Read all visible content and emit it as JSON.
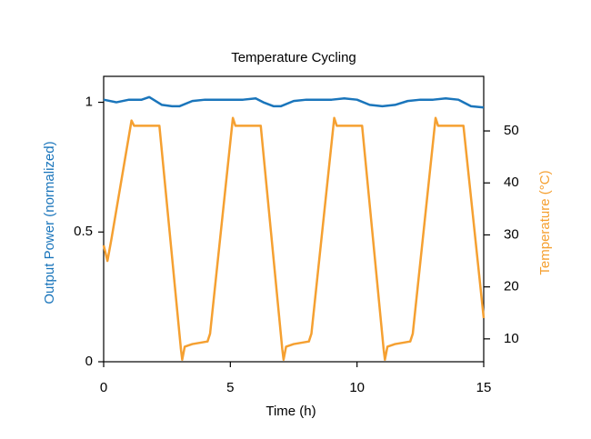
{
  "chart_data": {
    "type": "line",
    "title": "Temperature Cycling",
    "x_label": "Time (h)",
    "y_label": "Output Power (normalized)",
    "y2_label": "Temperature (°C)",
    "xlim": [
      0,
      15
    ],
    "xticks": [
      0,
      5,
      10,
      15
    ],
    "ylim": [
      0,
      1.1
    ],
    "yticks": [
      0,
      0.5,
      1
    ],
    "y2lim": [
      5.6,
      60.5
    ],
    "y2ticks": [
      10,
      20,
      30,
      40,
      50
    ],
    "series": [
      {
        "name": "Output Power",
        "color": "#1a75bb",
        "x": [
          0,
          0.5,
          1,
          1.5,
          1.8,
          2.3,
          2.7,
          3,
          3.5,
          4,
          4.5,
          5,
          5.5,
          6,
          6.3,
          6.7,
          7,
          7.5,
          8,
          8.5,
          9,
          9.5,
          10,
          10.5,
          11,
          11.5,
          12,
          12.5,
          13,
          13.5,
          14,
          14.5,
          15
        ],
        "values": [
          1.01,
          1.0,
          1.01,
          1.01,
          1.02,
          0.99,
          0.985,
          0.985,
          1.005,
          1.01,
          1.01,
          1.01,
          1.01,
          1.015,
          1.0,
          0.985,
          0.985,
          1.005,
          1.01,
          1.01,
          1.01,
          1.015,
          1.01,
          0.99,
          0.985,
          0.99,
          1.005,
          1.01,
          1.01,
          1.015,
          1.01,
          0.985,
          0.98
        ]
      },
      {
        "name": "Temperature",
        "color": "#f5a031",
        "axis": "y2",
        "x": [
          0,
          0.15,
          0.3,
          1.1,
          1.2,
          2.2,
          3.05,
          3.1,
          3.2,
          3.5,
          4.1,
          4.2,
          5.1,
          5.2,
          6.2,
          7.05,
          7.1,
          7.2,
          7.5,
          8.1,
          8.2,
          9.1,
          9.2,
          10.2,
          11.05,
          11.1,
          11.2,
          11.5,
          12.1,
          12.2,
          13.1,
          13.2,
          14.2,
          15
        ],
        "values": [
          28,
          25,
          29,
          52,
          51,
          51,
          8,
          6,
          8.5,
          9,
          9.5,
          11,
          52.5,
          51,
          51,
          8,
          6,
          8.5,
          9,
          9.5,
          11,
          52.5,
          51,
          51,
          8,
          6,
          8.5,
          9,
          9.5,
          11,
          52.5,
          51,
          51,
          14
        ]
      }
    ]
  }
}
